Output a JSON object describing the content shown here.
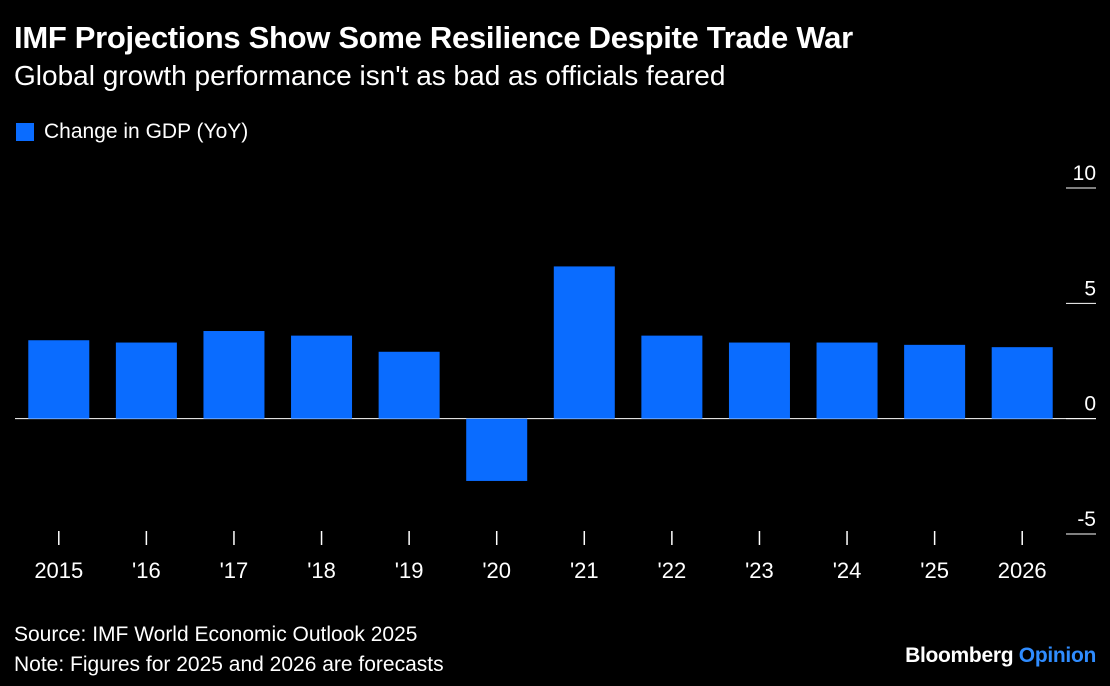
{
  "header": {
    "title": "IMF Projections Show Some Resilience Despite Trade War",
    "subtitle": "Global growth performance isn't as bad as officials feared"
  },
  "legend": {
    "label": "Change in GDP (YoY)"
  },
  "colors": {
    "bar": "#0a6cff",
    "background": "#000000",
    "text": "#ffffff",
    "brand_accent": "#2f8cff"
  },
  "footer": {
    "source": "Source: IMF World Economic Outlook 2025",
    "note": "Note: Figures for 2025 and 2026 are forecasts"
  },
  "brand": {
    "name": "Bloomberg",
    "suffix": "Opinion"
  },
  "chart_data": {
    "type": "bar",
    "categories": [
      "2015",
      "'16",
      "'17",
      "'18",
      "'19",
      "'20",
      "'21",
      "'22",
      "'23",
      "'24",
      "'25",
      "2026"
    ],
    "series": [
      {
        "name": "Change in GDP (YoY)",
        "values": [
          3.4,
          3.3,
          3.8,
          3.6,
          2.9,
          -2.7,
          6.6,
          3.6,
          3.3,
          3.3,
          3.2,
          3.1
        ]
      }
    ],
    "ylim": [
      -5,
      10
    ],
    "yticks": [
      "10",
      "5",
      "0",
      "-5"
    ],
    "grid": false,
    "legend_position": "top-left"
  }
}
